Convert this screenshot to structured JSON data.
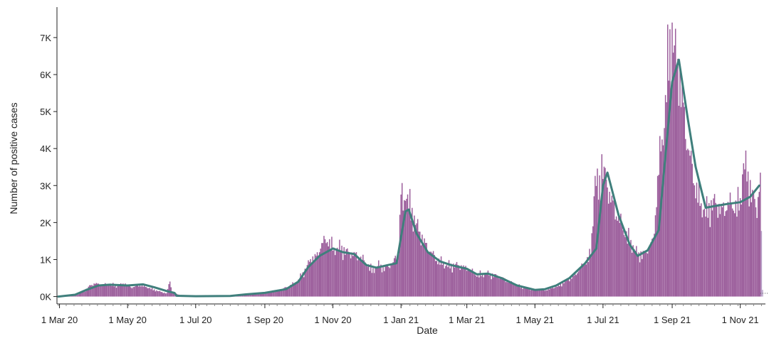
{
  "chart_data": {
    "type": "bar",
    "title": "",
    "xlabel": "Date",
    "ylabel": "Number of positive cases",
    "x_tick_labels": [
      "1 Mar 20",
      "1 May 20",
      "1 Jul 20",
      "1 Sep 20",
      "1 Nov 20",
      "1 Jan 21",
      "1 Mar 21",
      "1 May 21",
      "1 Jul 21",
      "1 Sep 21",
      "1 Nov 21"
    ],
    "y_tick_labels": [
      "0K",
      "1K",
      "2K",
      "3K",
      "4K",
      "5K",
      "6K",
      "7K"
    ],
    "y_tick_values": [
      0,
      1000,
      2000,
      3000,
      4000,
      5000,
      6000,
      7000
    ],
    "ylim": [
      -200,
      7900
    ],
    "x_range": [
      "2020-02-29",
      "2021-11-21"
    ],
    "grid": false,
    "colors": {
      "bars": "#9b5d9b",
      "bars_partial": "#b9a4c9",
      "trend_line": "#3f7f7c"
    },
    "series": [
      {
        "type": "bar",
        "points": [
          [
            "2020-02-29",
            0
          ],
          [
            "2020-03-10",
            5
          ],
          [
            "2020-03-18",
            60
          ],
          [
            "2020-03-24",
            180
          ],
          [
            "2020-03-28",
            300
          ],
          [
            "2020-04-02",
            380
          ],
          [
            "2020-04-08",
            320
          ],
          [
            "2020-04-15",
            360
          ],
          [
            "2020-04-22",
            290
          ],
          [
            "2020-04-28",
            370
          ],
          [
            "2020-05-05",
            260
          ],
          [
            "2020-05-12",
            330
          ],
          [
            "2020-05-20",
            250
          ],
          [
            "2020-05-28",
            160
          ],
          [
            "2020-06-05",
            90
          ],
          [
            "2020-06-08",
            460
          ],
          [
            "2020-06-10",
            110
          ],
          [
            "2020-06-18",
            40
          ],
          [
            "2020-07-01",
            20
          ],
          [
            "2020-07-20",
            15
          ],
          [
            "2020-08-01",
            30
          ],
          [
            "2020-08-15",
            60
          ],
          [
            "2020-09-01",
            110
          ],
          [
            "2020-09-12",
            170
          ],
          [
            "2020-09-22",
            280
          ],
          [
            "2020-09-30",
            420
          ],
          [
            "2020-10-06",
            700
          ],
          [
            "2020-10-12",
            1050
          ],
          [
            "2020-10-18",
            1200
          ],
          [
            "2020-10-22",
            1500
          ],
          [
            "2020-10-27",
            1650
          ],
          [
            "2020-11-02",
            1350
          ],
          [
            "2020-11-08",
            1400
          ],
          [
            "2020-11-15",
            1250
          ],
          [
            "2020-11-22",
            1200
          ],
          [
            "2020-11-30",
            1000
          ],
          [
            "2020-12-06",
            750
          ],
          [
            "2020-12-12",
            900
          ],
          [
            "2020-12-18",
            820
          ],
          [
            "2020-12-25",
            950
          ],
          [
            "2020-12-30",
            1350
          ],
          [
            "2021-01-01",
            3100
          ],
          [
            "2021-01-03",
            2500
          ],
          [
            "2021-01-05",
            3000
          ],
          [
            "2021-01-08",
            2700
          ],
          [
            "2021-01-12",
            2300
          ],
          [
            "2021-01-18",
            1800
          ],
          [
            "2021-01-25",
            1400
          ],
          [
            "2021-02-01",
            1100
          ],
          [
            "2021-02-10",
            880
          ],
          [
            "2021-02-20",
            900
          ],
          [
            "2021-03-01",
            820
          ],
          [
            "2021-03-10",
            620
          ],
          [
            "2021-03-18",
            650
          ],
          [
            "2021-03-25",
            620
          ],
          [
            "2021-04-01",
            550
          ],
          [
            "2021-04-10",
            380
          ],
          [
            "2021-04-20",
            260
          ],
          [
            "2021-05-01",
            200
          ],
          [
            "2021-05-10",
            180
          ],
          [
            "2021-05-20",
            280
          ],
          [
            "2021-05-28",
            420
          ],
          [
            "2021-06-05",
            600
          ],
          [
            "2021-06-12",
            850
          ],
          [
            "2021-06-20",
            1200
          ],
          [
            "2021-06-24",
            3400
          ],
          [
            "2021-06-27",
            3000
          ],
          [
            "2021-06-30",
            3850
          ],
          [
            "2021-07-03",
            3400
          ],
          [
            "2021-07-06",
            3000
          ],
          [
            "2021-07-12",
            2500
          ],
          [
            "2021-07-18",
            2000
          ],
          [
            "2021-07-25",
            1600
          ],
          [
            "2021-08-01",
            1200
          ],
          [
            "2021-08-08",
            1250
          ],
          [
            "2021-08-15",
            1600
          ],
          [
            "2021-08-20",
            3700
          ],
          [
            "2021-08-25",
            5000
          ],
          [
            "2021-08-29",
            7100
          ],
          [
            "2021-09-01",
            7500
          ],
          [
            "2021-09-04",
            6800
          ],
          [
            "2021-09-07",
            6500
          ],
          [
            "2021-09-10",
            5800
          ],
          [
            "2021-09-14",
            4500
          ],
          [
            "2021-09-18",
            3800
          ],
          [
            "2021-09-22",
            3200
          ],
          [
            "2021-09-27",
            2600
          ],
          [
            "2021-10-01",
            2400
          ],
          [
            "2021-10-08",
            2700
          ],
          [
            "2021-10-15",
            2500
          ],
          [
            "2021-10-22",
            2650
          ],
          [
            "2021-10-28",
            2600
          ],
          [
            "2021-11-01",
            2700
          ],
          [
            "2021-11-04",
            3800
          ],
          [
            "2021-11-08",
            3400
          ],
          [
            "2021-11-12",
            2900
          ],
          [
            "2021-11-16",
            2500
          ],
          [
            "2021-11-19",
            3400
          ],
          [
            "2021-11-21",
            180
          ]
        ]
      },
      {
        "type": "line",
        "points": [
          [
            "2020-02-29",
            0
          ],
          [
            "2020-03-15",
            50
          ],
          [
            "2020-03-25",
            180
          ],
          [
            "2020-04-05",
            300
          ],
          [
            "2020-04-15",
            320
          ],
          [
            "2020-05-01",
            300
          ],
          [
            "2020-05-15",
            330
          ],
          [
            "2020-05-25",
            250
          ],
          [
            "2020-06-05",
            150
          ],
          [
            "2020-06-12",
            100
          ],
          [
            "2020-06-14",
            20
          ],
          [
            "2020-07-01",
            10
          ],
          [
            "2020-08-01",
            15
          ],
          [
            "2020-08-15",
            60
          ],
          [
            "2020-09-01",
            100
          ],
          [
            "2020-09-20",
            200
          ],
          [
            "2020-10-01",
            400
          ],
          [
            "2020-10-10",
            800
          ],
          [
            "2020-10-20",
            1100
          ],
          [
            "2020-11-01",
            1300
          ],
          [
            "2020-11-10",
            1200
          ],
          [
            "2020-11-20",
            1150
          ],
          [
            "2020-12-01",
            850
          ],
          [
            "2020-12-10",
            780
          ],
          [
            "2020-12-20",
            850
          ],
          [
            "2020-12-28",
            900
          ],
          [
            "2021-01-05",
            2300
          ],
          [
            "2021-01-08",
            2350
          ],
          [
            "2021-01-15",
            1700
          ],
          [
            "2021-01-25",
            1200
          ],
          [
            "2021-02-05",
            950
          ],
          [
            "2021-02-15",
            850
          ],
          [
            "2021-03-01",
            750
          ],
          [
            "2021-03-10",
            600
          ],
          [
            "2021-03-20",
            620
          ],
          [
            "2021-04-01",
            500
          ],
          [
            "2021-04-15",
            300
          ],
          [
            "2021-05-01",
            180
          ],
          [
            "2021-05-10",
            200
          ],
          [
            "2021-05-20",
            300
          ],
          [
            "2021-06-01",
            500
          ],
          [
            "2021-06-15",
            900
          ],
          [
            "2021-06-25",
            1300
          ],
          [
            "2021-07-01",
            3000
          ],
          [
            "2021-07-05",
            3350
          ],
          [
            "2021-07-15",
            2200
          ],
          [
            "2021-07-25",
            1400
          ],
          [
            "2021-08-01",
            1100
          ],
          [
            "2021-08-10",
            1250
          ],
          [
            "2021-08-20",
            1800
          ],
          [
            "2021-08-25",
            3500
          ],
          [
            "2021-09-01",
            5800
          ],
          [
            "2021-09-07",
            6400
          ],
          [
            "2021-09-15",
            4800
          ],
          [
            "2021-09-22",
            3500
          ],
          [
            "2021-10-01",
            2400
          ],
          [
            "2021-10-10",
            2450
          ],
          [
            "2021-10-20",
            2500
          ],
          [
            "2021-11-01",
            2550
          ],
          [
            "2021-11-10",
            2700
          ],
          [
            "2021-11-18",
            3000
          ]
        ]
      }
    ]
  }
}
